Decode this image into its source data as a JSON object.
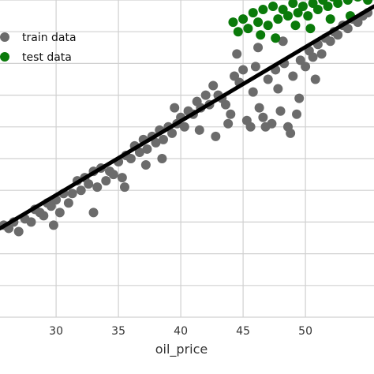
{
  "chart_data": {
    "type": "scatter",
    "title": "",
    "xlabel": "oil_price",
    "ylabel": "",
    "xlim": [
      25.5,
      55.5
    ],
    "ylim": [
      0,
      10
    ],
    "x_ticks": [
      30,
      35,
      40,
      45,
      50
    ],
    "x_tick_labels": [
      "30",
      "35",
      "40",
      "45",
      "50"
    ],
    "grid": true,
    "legend_position": "top-left",
    "series": [
      {
        "name": "train data",
        "color": "#6b6b6b",
        "points": [
          [
            25.8,
            2.9
          ],
          [
            26.2,
            2.8
          ],
          [
            26.6,
            3.0
          ],
          [
            27.0,
            2.7
          ],
          [
            27.5,
            3.1
          ],
          [
            28.0,
            3.0
          ],
          [
            28.3,
            3.4
          ],
          [
            28.7,
            3.3
          ],
          [
            29.0,
            3.2
          ],
          [
            29.3,
            3.6
          ],
          [
            29.6,
            3.5
          ],
          [
            30.0,
            3.7
          ],
          [
            30.3,
            3.3
          ],
          [
            30.6,
            3.9
          ],
          [
            31.0,
            3.6
          ],
          [
            31.3,
            3.9
          ],
          [
            31.7,
            4.3
          ],
          [
            32.0,
            4.0
          ],
          [
            32.3,
            4.4
          ],
          [
            32.6,
            4.2
          ],
          [
            33.0,
            4.6
          ],
          [
            33.3,
            4.1
          ],
          [
            33.6,
            4.7
          ],
          [
            34.0,
            4.3
          ],
          [
            34.3,
            4.6
          ],
          [
            34.6,
            4.5
          ],
          [
            35.0,
            4.9
          ],
          [
            35.3,
            4.4
          ],
          [
            35.6,
            5.1
          ],
          [
            36.0,
            5.0
          ],
          [
            36.3,
            5.4
          ],
          [
            36.7,
            5.2
          ],
          [
            37.0,
            5.6
          ],
          [
            37.3,
            5.3
          ],
          [
            37.7,
            5.7
          ],
          [
            38.0,
            5.5
          ],
          [
            38.3,
            5.9
          ],
          [
            38.6,
            5.6
          ],
          [
            39.0,
            6.0
          ],
          [
            39.3,
            5.8
          ],
          [
            39.7,
            6.1
          ],
          [
            40.0,
            6.3
          ],
          [
            40.3,
            6.0
          ],
          [
            40.6,
            6.5
          ],
          [
            41.0,
            6.4
          ],
          [
            41.3,
            6.8
          ],
          [
            41.6,
            6.6
          ],
          [
            42.0,
            7.0
          ],
          [
            42.3,
            6.7
          ],
          [
            42.6,
            7.3
          ],
          [
            43.0,
            7.0
          ],
          [
            43.3,
            6.9
          ],
          [
            43.6,
            6.7
          ],
          [
            44.0,
            6.4
          ],
          [
            44.3,
            7.6
          ],
          [
            44.7,
            7.4
          ],
          [
            45.0,
            7.8
          ],
          [
            45.3,
            6.2
          ],
          [
            45.6,
            6.0
          ],
          [
            46.0,
            7.9
          ],
          [
            46.3,
            6.6
          ],
          [
            46.6,
            6.3
          ],
          [
            47.0,
            7.5
          ],
          [
            47.3,
            6.1
          ],
          [
            47.6,
            7.8
          ],
          [
            48.0,
            6.5
          ],
          [
            48.3,
            8.0
          ],
          [
            48.6,
            6.0
          ],
          [
            49.0,
            7.6
          ],
          [
            49.3,
            6.4
          ],
          [
            49.6,
            8.1
          ],
          [
            50.0,
            7.9
          ],
          [
            50.3,
            8.4
          ],
          [
            50.6,
            8.2
          ],
          [
            51.0,
            8.6
          ],
          [
            51.3,
            8.3
          ],
          [
            51.6,
            8.8
          ],
          [
            52.0,
            8.7
          ],
          [
            52.3,
            9.0
          ],
          [
            52.6,
            8.9
          ],
          [
            53.0,
            9.2
          ],
          [
            53.4,
            9.1
          ],
          [
            53.8,
            9.4
          ],
          [
            54.2,
            9.3
          ],
          [
            54.6,
            9.5
          ],
          [
            55.0,
            9.6
          ],
          [
            29.8,
            2.9
          ],
          [
            33.0,
            3.3
          ],
          [
            35.5,
            4.1
          ],
          [
            38.5,
            5.0
          ],
          [
            41.5,
            5.9
          ],
          [
            43.8,
            6.1
          ],
          [
            46.8,
            6.0
          ],
          [
            48.8,
            5.8
          ],
          [
            39.5,
            6.6
          ],
          [
            37.2,
            4.8
          ],
          [
            42.8,
            5.7
          ],
          [
            45.8,
            7.1
          ],
          [
            47.8,
            7.2
          ],
          [
            49.5,
            6.9
          ],
          [
            44.5,
            8.3
          ],
          [
            46.2,
            8.5
          ],
          [
            48.2,
            8.7
          ],
          [
            50.8,
            7.5
          ]
        ]
      },
      {
        "name": "test data",
        "color": "#0a7a0a",
        "points": [
          [
            44.2,
            9.3
          ],
          [
            44.6,
            9.0
          ],
          [
            45.0,
            9.4
          ],
          [
            45.4,
            9.1
          ],
          [
            45.8,
            9.6
          ],
          [
            46.2,
            9.3
          ],
          [
            46.6,
            9.7
          ],
          [
            47.0,
            9.2
          ],
          [
            47.4,
            9.8
          ],
          [
            47.8,
            9.4
          ],
          [
            48.2,
            9.7
          ],
          [
            48.6,
            9.5
          ],
          [
            49.0,
            9.9
          ],
          [
            49.4,
            9.6
          ],
          [
            49.8,
            9.8
          ],
          [
            50.2,
            9.5
          ],
          [
            50.6,
            9.9
          ],
          [
            51.0,
            9.7
          ],
          [
            51.4,
            10.0
          ],
          [
            51.8,
            9.8
          ],
          [
            52.2,
            10.1
          ],
          [
            52.6,
            9.9
          ],
          [
            53.0,
            10.2
          ],
          [
            53.4,
            10.0
          ],
          [
            53.8,
            10.3
          ],
          [
            54.2,
            10.1
          ],
          [
            54.6,
            10.2
          ],
          [
            55.0,
            10.0
          ],
          [
            46.4,
            8.9
          ],
          [
            47.6,
            8.8
          ],
          [
            49.2,
            9.2
          ],
          [
            50.4,
            9.1
          ],
          [
            52.0,
            9.4
          ],
          [
            53.6,
            9.5
          ]
        ]
      }
    ],
    "regression_line": {
      "color": "#000000",
      "points": [
        [
          25.5,
          2.8
        ],
        [
          55.5,
          9.8
        ]
      ]
    }
  }
}
